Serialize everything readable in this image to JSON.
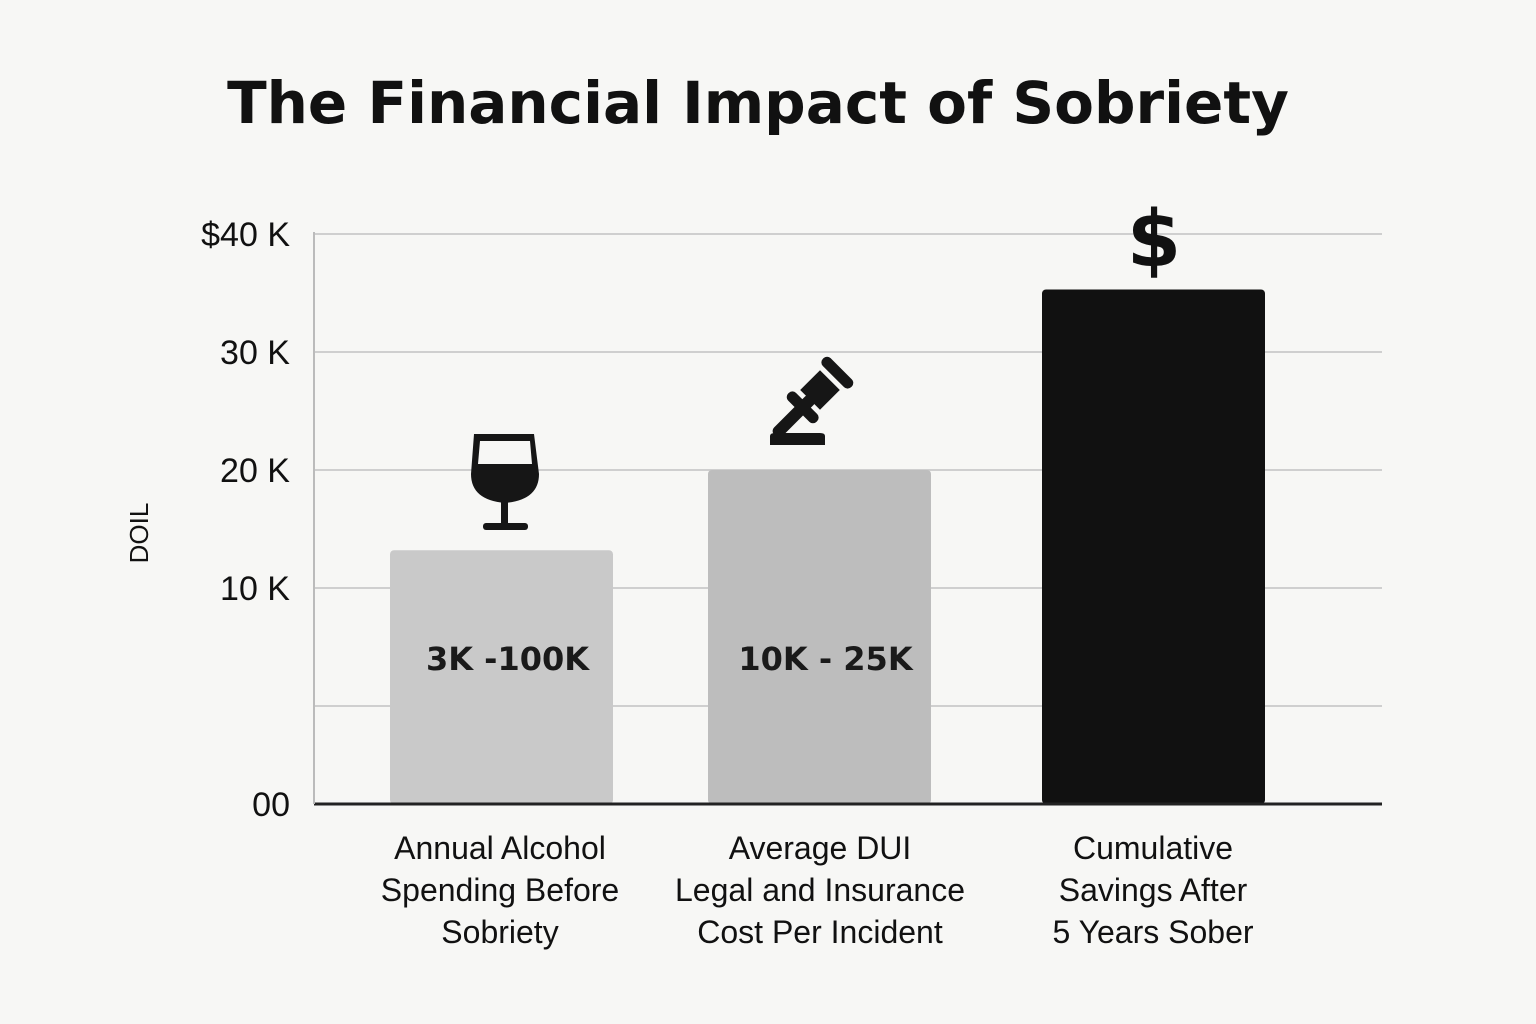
{
  "chart_data": {
    "type": "bar",
    "title": "The Financial Impact of Sobriety",
    "ylabel": "DOIL",
    "xlabel": "",
    "ylim": [
      0,
      40
    ],
    "y_ticks": [
      {
        "value": 0,
        "label": "00"
      },
      {
        "value": 10,
        "label": "10 K"
      },
      {
        "value": 20,
        "label": "20 K"
      },
      {
        "value": 30,
        "label": "30 K"
      },
      {
        "value": 40,
        "label": "$40 K"
      }
    ],
    "grid": true,
    "categories": [
      [
        "Annual Alcohol",
        "Spending Before",
        "Sobriety"
      ],
      [
        "Average DUI",
        "Legal and Insurance",
        "Cost Per Incident"
      ],
      [
        "Cumulative",
        "Savings After",
        "5 Years Sober"
      ]
    ],
    "values": [
      13.2,
      20,
      35.3
    ],
    "units": "thousand USD",
    "data_labels": [
      "3K -100K",
      "10K - 25K",
      ""
    ],
    "bar_colors": [
      "#c9c9c9",
      "#bdbdbd",
      "#111111"
    ],
    "icons": [
      "wine-glass-icon",
      "gavel-icon",
      "dollar-sign-icon"
    ],
    "dollar_glyph": "$"
  }
}
